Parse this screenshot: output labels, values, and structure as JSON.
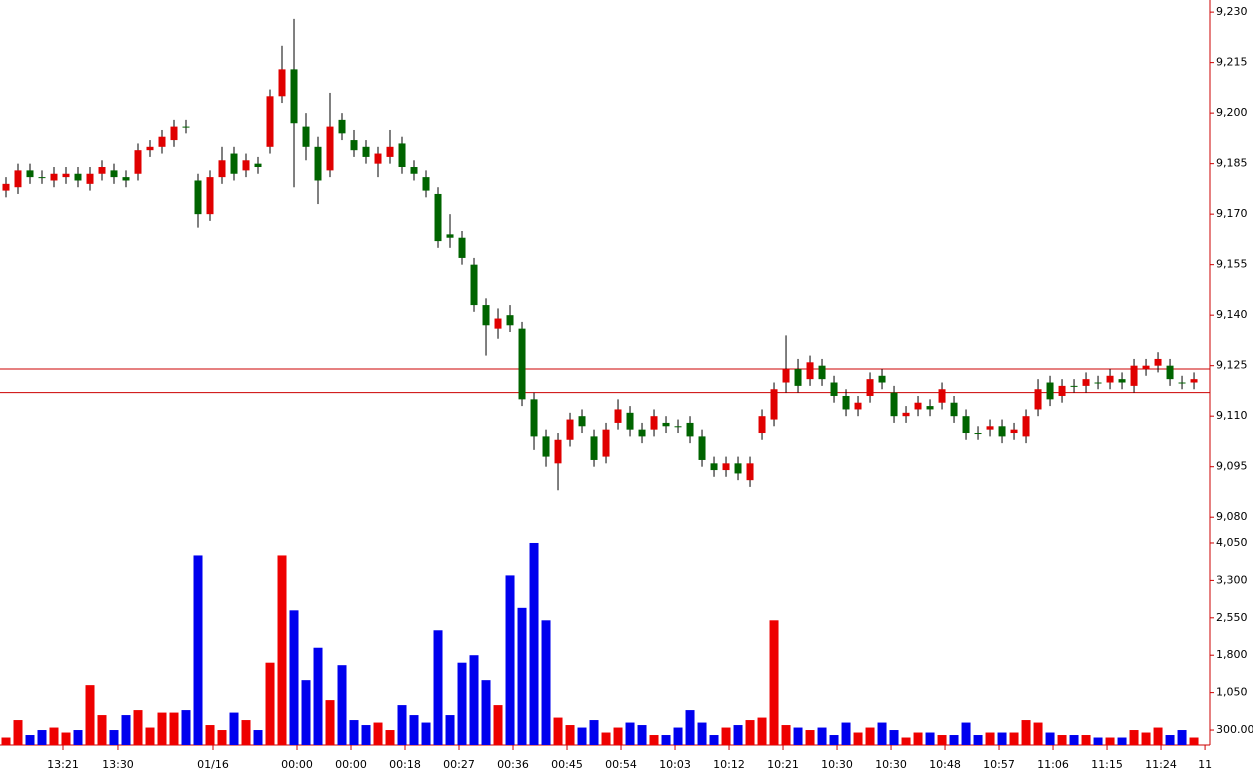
{
  "chart_data": {
    "type": "candlestick",
    "up_color": "#e00000",
    "down_color": "#006400",
    "wick_color": "#000000",
    "volume_up_color": "#ee0000",
    "volume_down_color": "#0000ee",
    "line_color": "#cc0000",
    "hlines": [
      9124,
      9117
    ],
    "open": [
      9177,
      9178,
      9183,
      9181,
      9180,
      9181,
      9182,
      9179,
      9182,
      9183,
      9181,
      9182,
      9189,
      9190,
      9192,
      9196,
      9180,
      9170,
      9181,
      9188,
      9183,
      9185,
      9190,
      9205,
      9213,
      9196,
      9190,
      9183,
      9198,
      9192,
      9190,
      9185,
      9187,
      9191,
      9184,
      9181,
      9176,
      9164,
      9163,
      9155,
      9143,
      9136,
      9140,
      9136,
      9115,
      9104,
      9096,
      9103,
      9110,
      9104,
      9098,
      9108,
      9111,
      9106,
      9106,
      9108,
      9107,
      9108,
      9104,
      9096,
      9094,
      9096,
      9091,
      9105,
      9109,
      9120,
      9124,
      9121,
      9125,
      9120,
      9116,
      9112,
      9116,
      9122,
      9117,
      9110,
      9112,
      9113,
      9114,
      9114,
      9110,
      9105,
      9106,
      9107,
      9105,
      9104,
      9112,
      9120,
      9116,
      9119,
      9119,
      9120,
      9120,
      9121,
      9119,
      9124,
      9125,
      9125,
      9120,
      9120
    ],
    "high": [
      9181,
      9185,
      9185,
      9183,
      9184,
      9184,
      9184,
      9184,
      9186,
      9185,
      9183,
      9191,
      9192,
      9195,
      9198,
      9198,
      9182,
      9183,
      9190,
      9190,
      9188,
      9187,
      9207,
      9220,
      9228,
      9200,
      9193,
      9206,
      9200,
      9195,
      9192,
      9190,
      9195,
      9193,
      9186,
      9183,
      9178,
      9170,
      9165,
      9157,
      9145,
      9142,
      9143,
      9138,
      9117,
      9106,
      9105,
      9111,
      9112,
      9106,
      9108,
      9115,
      9113,
      9108,
      9112,
      9110,
      9109,
      9110,
      9106,
      9098,
      9098,
      9098,
      9098,
      9112,
      9120,
      9134,
      9127,
      9128,
      9127,
      9122,
      9118,
      9116,
      9123,
      9124,
      9119,
      9113,
      9116,
      9115,
      9120,
      9116,
      9112,
      9107,
      9109,
      9109,
      9108,
      9112,
      9121,
      9122,
      9121,
      9121,
      9123,
      9122,
      9124,
      9123,
      9127,
      9127,
      9129,
      9127,
      9122,
      9123
    ],
    "low": [
      9175,
      9176,
      9179,
      9179,
      9178,
      9179,
      9178,
      9177,
      9180,
      9179,
      9178,
      9180,
      9187,
      9188,
      9190,
      9194,
      9166,
      9168,
      9179,
      9180,
      9181,
      9182,
      9188,
      9203,
      9178,
      9186,
      9173,
      9181,
      9192,
      9187,
      9185,
      9181,
      9185,
      9182,
      9180,
      9175,
      9160,
      9160,
      9155,
      9141,
      9128,
      9133,
      9135,
      9113,
      9100,
      9095,
      9088,
      9101,
      9105,
      9095,
      9096,
      9106,
      9104,
      9102,
      9104,
      9105,
      9105,
      9102,
      9095,
      9092,
      9092,
      9091,
      9089,
      9103,
      9107,
      9117,
      9117,
      9119,
      9119,
      9114,
      9110,
      9110,
      9114,
      9118,
      9108,
      9108,
      9110,
      9110,
      9112,
      9108,
      9103,
      9103,
      9104,
      9102,
      9103,
      9102,
      9110,
      9113,
      9114,
      9117,
      9117,
      9118,
      9118,
      9118,
      9117,
      9122,
      9123,
      9119,
      9118,
      9118
    ],
    "close": [
      9179,
      9183,
      9181,
      9181,
      9182,
      9182,
      9180,
      9182,
      9184,
      9181,
      9180,
      9189,
      9190,
      9193,
      9196,
      9196,
      9170,
      9181,
      9186,
      9182,
      9186,
      9184,
      9205,
      9213,
      9197,
      9190,
      9180,
      9196,
      9194,
      9189,
      9187,
      9188,
      9190,
      9184,
      9182,
      9177,
      9162,
      9163,
      9157,
      9143,
      9137,
      9139,
      9137,
      9115,
      9104,
      9098,
      9103,
      9109,
      9107,
      9097,
      9106,
      9112,
      9106,
      9104,
      9110,
      9107,
      9107,
      9104,
      9097,
      9094,
      9096,
      9093,
      9096,
      9110,
      9118,
      9124,
      9119,
      9126,
      9121,
      9116,
      9112,
      9114,
      9121,
      9120,
      9110,
      9111,
      9114,
      9112,
      9118,
      9110,
      9105,
      9105,
      9107,
      9104,
      9106,
      9110,
      9118,
      9115,
      9119,
      9119,
      9121,
      9120,
      9122,
      9120,
      9125,
      9125,
      9127,
      9121,
      9120,
      9121
    ],
    "volume": [
      150,
      500,
      200,
      300,
      350,
      250,
      300,
      1200,
      600,
      300,
      600,
      700,
      350,
      650,
      650,
      700,
      3800,
      400,
      300,
      650,
      500,
      300,
      1650,
      3800,
      2700,
      1300,
      1950,
      900,
      1600,
      500,
      400,
      450,
      300,
      800,
      600,
      450,
      2300,
      600,
      1650,
      1800,
      1300,
      800,
      3400,
      2750,
      4050,
      2500,
      550,
      400,
      350,
      500,
      250,
      350,
      450,
      400,
      200,
      200,
      350,
      700,
      450,
      200,
      350,
      400,
      500,
      550,
      2500,
      400,
      350,
      300,
      350,
      200,
      450,
      250,
      350,
      450,
      300,
      150,
      250,
      250,
      200,
      200,
      450,
      200,
      250,
      250,
      250,
      500,
      450,
      250,
      200,
      200,
      200,
      150,
      150,
      150,
      300,
      250,
      350,
      200,
      300,
      150
    ],
    "xlim": [
      -0.5,
      100.33
    ],
    "xticks": [
      {
        "value": 4.75,
        "label": "13:21"
      },
      {
        "value": 9.33,
        "label": "13:30"
      },
      {
        "value": 17.25,
        "label": "01/16"
      },
      {
        "value": 24.25,
        "label": "00:00"
      },
      {
        "value": 28.75,
        "label": "00:00"
      },
      {
        "value": 33.25,
        "label": "00:18"
      },
      {
        "value": 37.75,
        "label": "00:27"
      },
      {
        "value": 42.25,
        "label": "00:36"
      },
      {
        "value": 46.75,
        "label": "00:45"
      },
      {
        "value": 51.25,
        "label": "00:54"
      },
      {
        "value": 55.75,
        "label": "10:03"
      },
      {
        "value": 60.25,
        "label": "10:12"
      },
      {
        "value": 64.75,
        "label": "10:21"
      },
      {
        "value": 69.25,
        "label": "10:30"
      },
      {
        "value": 73.75,
        "label": "10:30"
      },
      {
        "value": 78.25,
        "label": "10:48"
      },
      {
        "value": 82.75,
        "label": "10:57"
      },
      {
        "value": 87.25,
        "label": "11:06"
      },
      {
        "value": 91.75,
        "label": "11:15"
      },
      {
        "value": 96.25,
        "label": "11:24"
      },
      {
        "value": 99.92,
        "label": "11"
      }
    ],
    "ylim": [
      9076.2,
      9233.6
    ],
    "yticks": [
      {
        "value": 9080,
        "label": "9,080"
      },
      {
        "value": 9095,
        "label": "9,095"
      },
      {
        "value": 9110,
        "label": "9,110"
      },
      {
        "value": 9125,
        "label": "9,125"
      },
      {
        "value": 9140,
        "label": "9,140"
      },
      {
        "value": 9155,
        "label": "9,155"
      },
      {
        "value": 9170,
        "label": "9,170"
      },
      {
        "value": 9185,
        "label": "9,185"
      },
      {
        "value": 9200,
        "label": "9,200"
      },
      {
        "value": 9215,
        "label": "9,215"
      },
      {
        "value": 9230,
        "label": "9,230"
      }
    ],
    "vlim": [
      0,
      4210
    ],
    "vticks": [
      {
        "value": 300,
        "label": "300.00"
      },
      {
        "value": 1050,
        "label": "1,050"
      },
      {
        "value": 1800,
        "label": "1,800"
      },
      {
        "value": 2550,
        "label": "2,550"
      },
      {
        "value": 3300,
        "label": "3,300"
      },
      {
        "value": 4050,
        "label": "4,050"
      }
    ]
  }
}
